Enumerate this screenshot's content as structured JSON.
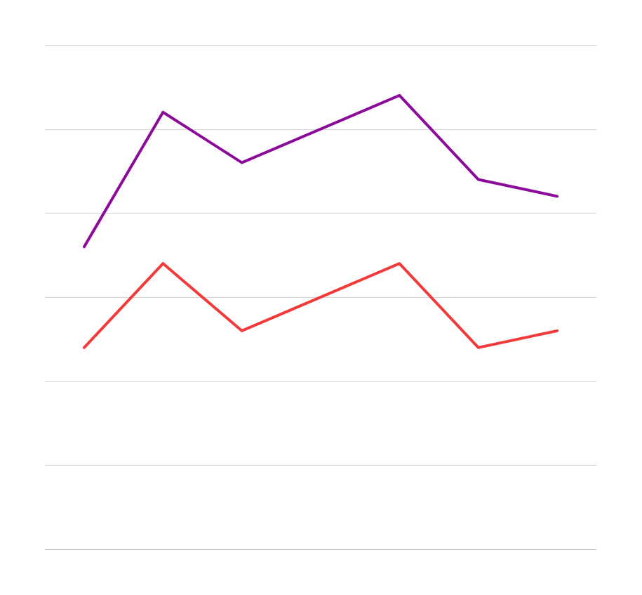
{
  "chart_data": {
    "type": "line",
    "title": "",
    "xlabel": "",
    "ylabel": "",
    "x": [
      1,
      2,
      3,
      4,
      5,
      6,
      7
    ],
    "ylim": [
      0,
      6
    ],
    "grid": true,
    "yticks": [
      0,
      1,
      2,
      3,
      4,
      5,
      6
    ],
    "legend": "none",
    "series": [
      {
        "color": "#8B0A9A",
        "values": [
          3.6,
          5.2,
          4.6,
          5.0,
          5.4,
          4.4,
          4.2
        ]
      },
      {
        "color": "#F23A3A",
        "values": [
          2.4,
          3.4,
          2.6,
          3.0,
          3.4,
          2.4,
          2.6
        ]
      }
    ],
    "colors": {
      "gridline": "#d6d6d6",
      "baseline": "#b8b8b8"
    }
  }
}
